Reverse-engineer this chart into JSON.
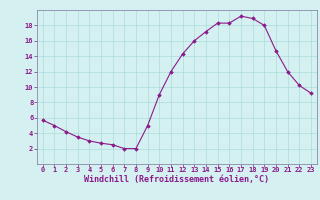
{
  "x": [
    0,
    1,
    2,
    3,
    4,
    5,
    6,
    7,
    8,
    9,
    10,
    11,
    12,
    13,
    14,
    15,
    16,
    17,
    18,
    19,
    20,
    21,
    22,
    23
  ],
  "y": [
    5.7,
    5.0,
    4.2,
    3.5,
    3.0,
    2.7,
    2.5,
    2.0,
    2.0,
    5.0,
    9.0,
    12.0,
    14.3,
    16.0,
    17.2,
    18.3,
    18.3,
    19.2,
    18.9,
    18.0,
    14.7,
    12.0,
    10.2,
    9.2
  ],
  "line_color": "#8B1A8B",
  "marker": "D",
  "marker_size": 1.8,
  "bg_color": "#d4f0f0",
  "grid_color": "#aadddd",
  "xlabel": "Windchill (Refroidissement éolien,°C)",
  "xlabel_color": "#8B1A8B",
  "ylim": [
    0,
    20
  ],
  "xlim": [
    -0.5,
    23.5
  ],
  "yticks": [
    2,
    4,
    6,
    8,
    10,
    12,
    14,
    16,
    18
  ],
  "xticks": [
    0,
    1,
    2,
    3,
    4,
    5,
    6,
    7,
    8,
    9,
    10,
    11,
    12,
    13,
    14,
    15,
    16,
    17,
    18,
    19,
    20,
    21,
    22,
    23
  ],
  "tick_color": "#8B1A8B",
  "axis_color": "#8888aa",
  "label_fontsize": 6.0,
  "tick_fontsize": 5.0
}
